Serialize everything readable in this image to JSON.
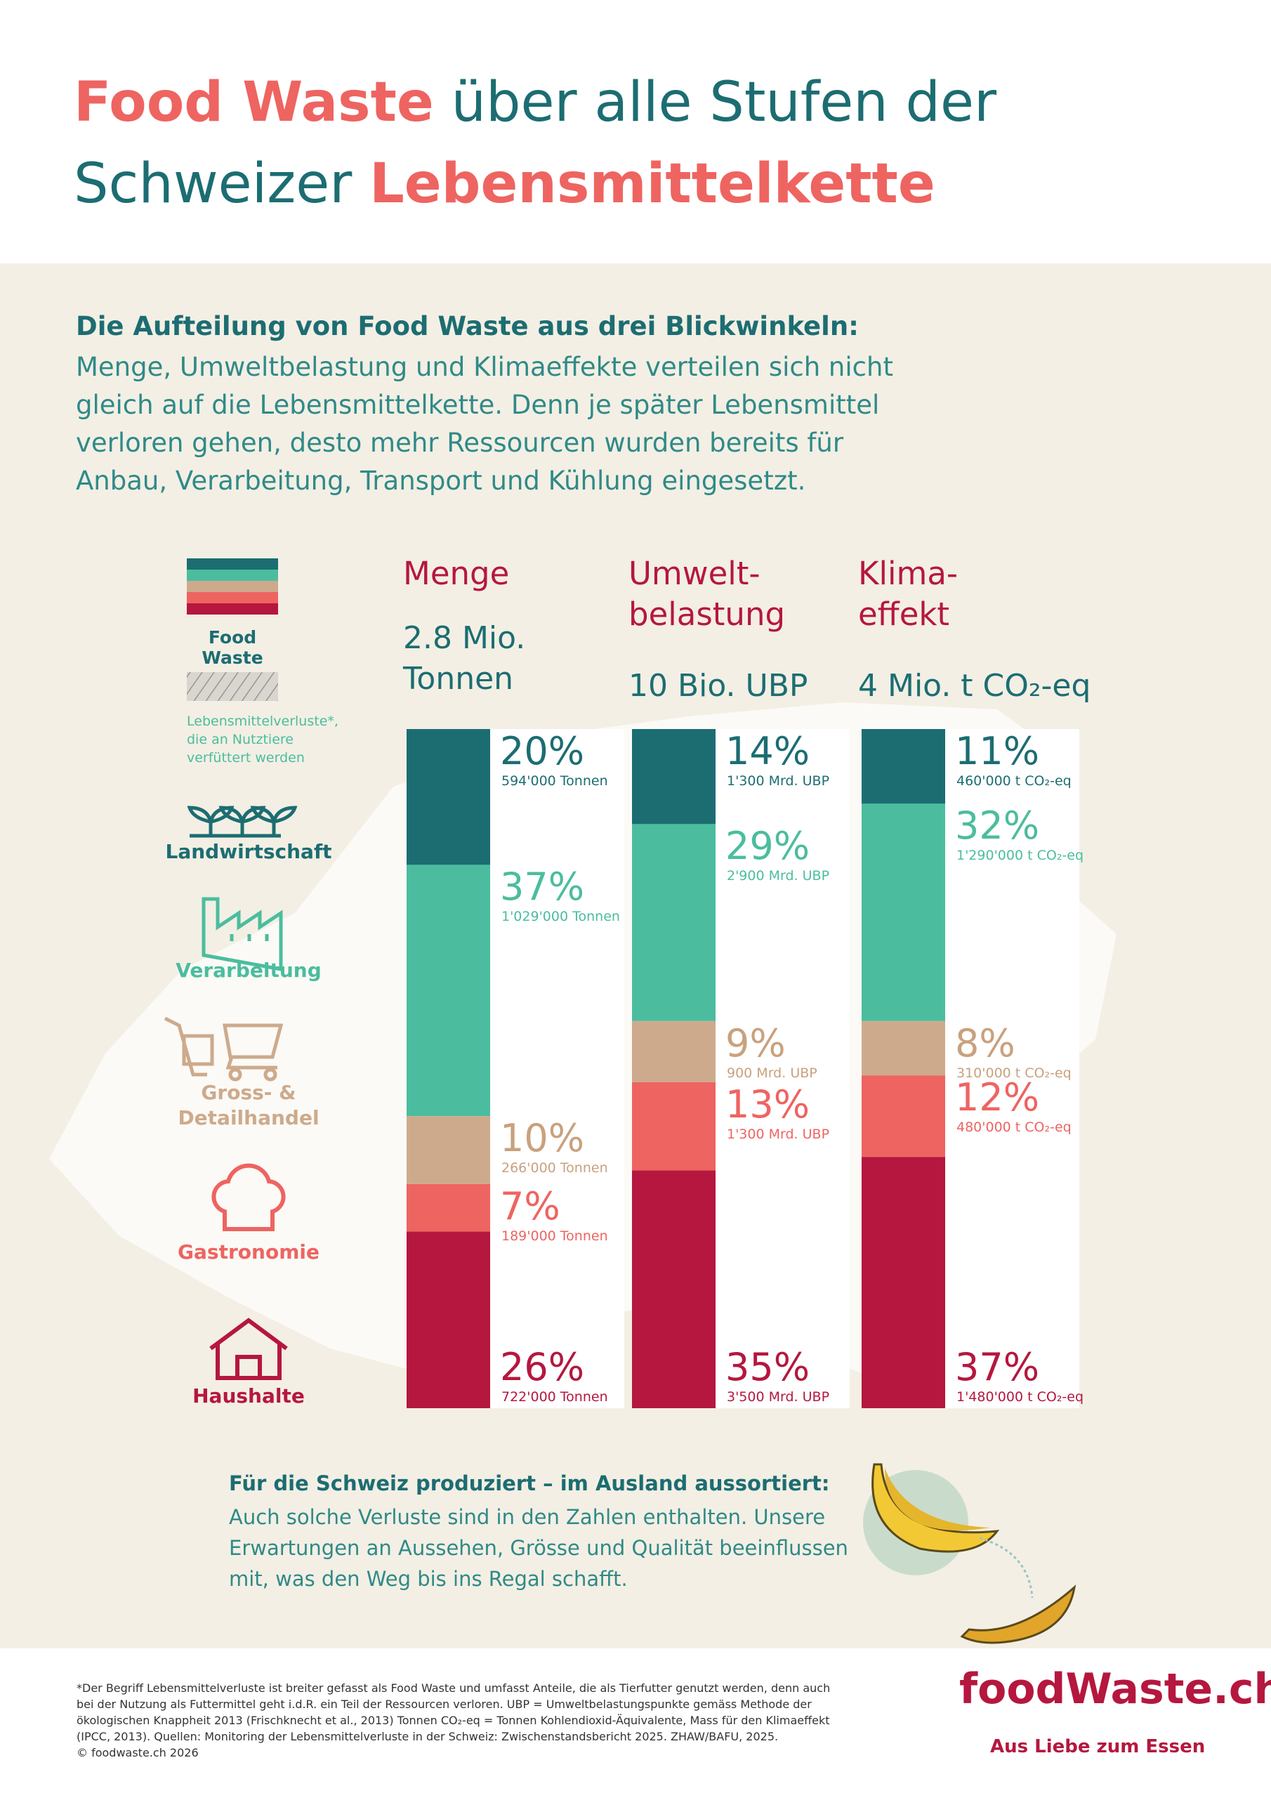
{
  "header": {
    "title_parts": [
      "Food Waste",
      " über alle Stufen der",
      "Schweizer ",
      "Lebensmittelkette"
    ]
  },
  "intro": {
    "heading": "Die Aufteilung von Food Waste aus drei Blickwinkeln:",
    "lines": [
      "Menge, Umweltbelastung und Klimaeffekte verteilen sich nicht",
      "gleich auf die Lebensmittelkette. Denn je später Lebensmittel",
      "verloren gehen, desto mehr Ressourcen wurden bereits für",
      "Anbau, Verarbeitung, Transport und Kühlung eingesetzt."
    ]
  },
  "legend": {
    "food_waste": "Food Waste",
    "losses": [
      "Lebensmittelverluste*,",
      "die an Nutztiere",
      "verfüttert werden"
    ]
  },
  "chart_data": {
    "type": "stacked-bar",
    "categories": [
      "Menge",
      "Umwelt-\nbelastung",
      "Klima-\neffekt"
    ],
    "totals": [
      "2.8 Mio.\nTonnen",
      "10 Bio. UBP",
      "4 Mio. t CO₂-eq"
    ],
    "ylim": [
      0,
      100
    ],
    "series": [
      {
        "name": "Landwirtschaft",
        "color": "#1c6d72",
        "values": [
          20,
          14,
          11
        ],
        "value_labels": [
          "20%",
          "14%",
          "11%"
        ],
        "amount_labels": [
          "594'000 Tonnen",
          "1'300 Mrd. UBP",
          "460'000 t CO₂-eq"
        ]
      },
      {
        "name": "Verarbeitung",
        "color": "#4bbd9e",
        "values": [
          37,
          29,
          32
        ],
        "value_labels": [
          "37%",
          "29%",
          "32%"
        ],
        "amount_labels": [
          "1'029'000 Tonnen",
          "2'900 Mrd. UBP",
          "1'290'000 t CO₂-eq"
        ]
      },
      {
        "name": "Gross- &\nDetailhandel",
        "color": "#cdaa8c",
        "values": [
          10,
          9,
          8
        ],
        "value_labels": [
          "10%",
          "9%",
          "8%"
        ],
        "amount_labels": [
          "266'000 Tonnen",
          "900 Mrd. UBP",
          "310'000 t CO₂-eq"
        ]
      },
      {
        "name": "Gastronomie",
        "color": "#ee6461",
        "values": [
          7,
          13,
          12
        ],
        "value_labels": [
          "7%",
          "13%",
          "12%"
        ],
        "amount_labels": [
          "189'000 Tonnen",
          "1'300 Mrd. UBP",
          "480'000 t CO₂-eq"
        ]
      },
      {
        "name": "Haushalte",
        "color": "#b5173e",
        "values": [
          26,
          35,
          37
        ],
        "value_labels": [
          "26%",
          "35%",
          "37%"
        ],
        "amount_labels": [
          "722'000 Tonnen",
          "3'500 Mrd. UBP",
          "1'480'000 t CO₂-eq"
        ]
      }
    ]
  },
  "bottom": {
    "heading": "Für die Schweiz produziert – im Ausland aussortiert:",
    "lines": [
      "Auch solche Verluste sind in den Zahlen enthalten. Unsere",
      "Erwartungen an Aussehen, Grösse und Qualität beeinflussen",
      "mit, was den Weg bis ins Regal schafft."
    ]
  },
  "footer": {
    "notes": [
      "*Der Begriff Lebensmittelverluste ist breiter gefasst als Food Waste und umfasst Anteile, die als Tierfutter genutzt werden, denn auch",
      "bei der Nutzung als Futtermittel geht i.d.R. ein Teil der Ressourcen verloren. UBP = Umweltbelastungspunkte gemäss Methode der",
      "ökologischen Knappheit 2013 (Frischknecht et al., 2013) Tonnen CO₂-eq = Tonnen Kohlendioxid-Äquivalente, Mass für den Klimaeffekt",
      "(IPCC, 2013). Quellen: Monitoring der Lebensmittelverluste in der Schweiz: Zwischenstandsbericht 2025. ZHAW/BAFU, 2025.",
      "© foodwaste.ch 2026"
    ],
    "logo": "foodWaste.ch",
    "tagline": "Aus Liebe zum Essen"
  }
}
